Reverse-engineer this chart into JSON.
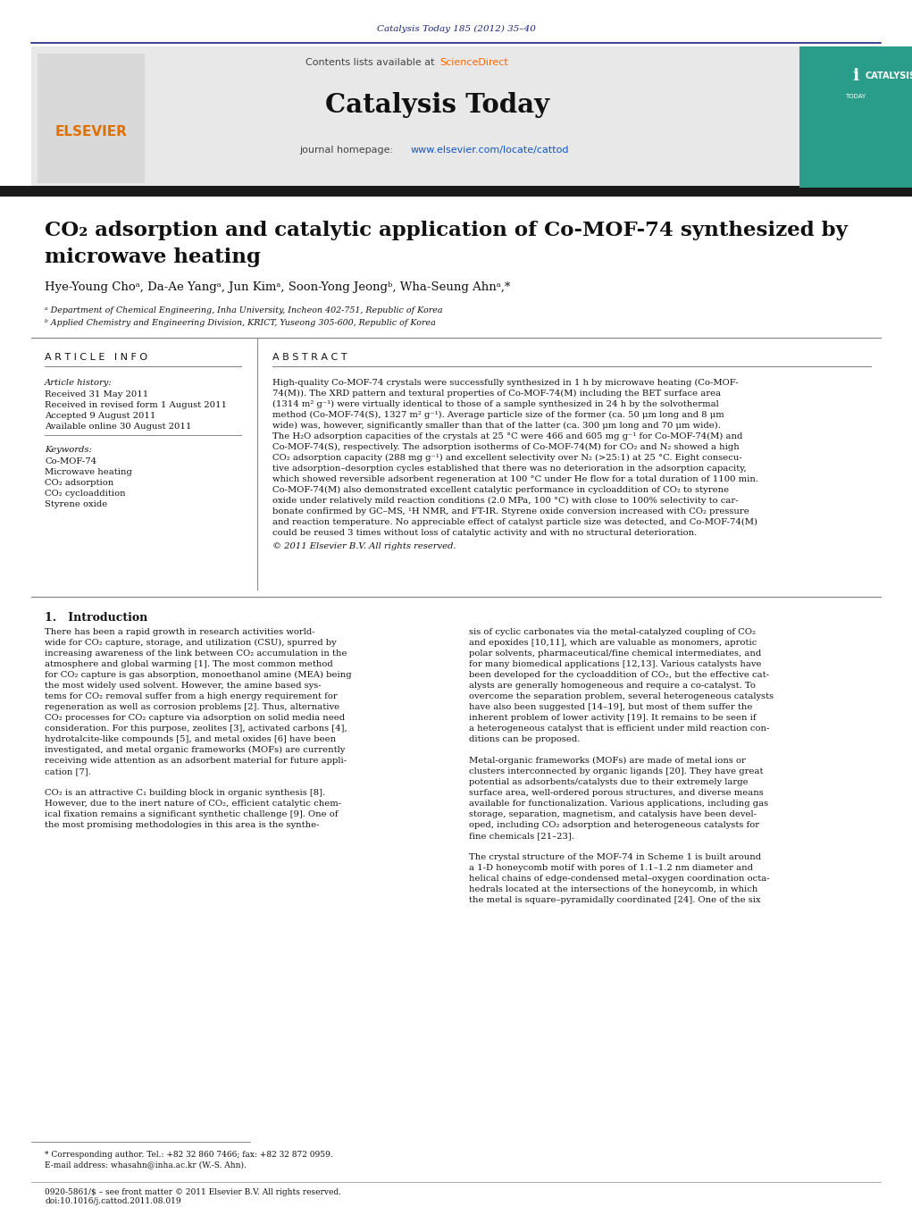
{
  "journal_ref": "Catalysis Today 185 (2012) 35–40",
  "journal_ref_color": "#1a237e",
  "header_bg": "#e8e8e8",
  "header_border_color": "#1a237e",
  "journal_name": "Catalysis Today",
  "contents_text": "Contents lists available at ",
  "sciencedirect_text": "ScienceDirect",
  "sciencedirect_color": "#ff6600",
  "journal_homepage_text": "journal homepage: ",
  "journal_url": "www.elsevier.com/locate/cattod",
  "journal_url_color": "#1155cc",
  "elsevier_color": "#ff6600",
  "dark_bar_color": "#1a1a1a",
  "title_line1": "CO₂ adsorption and catalytic application of Co-MOF-74 synthesized by",
  "title_line2": "microwave heating",
  "title_fontsize": 17,
  "authors": "Hye-Young Choᵃ, Da-Ae Yangᵃ, Jun Kimᵃ, Soon-Yong Jeongᵇ, Wha-Seung Ahnᵃ,*",
  "affil_a": "ᵃ Department of Chemical Engineering, Inha University, Incheon 402-751, Republic of Korea",
  "affil_b": "ᵇ Applied Chemistry and Engineering Division, KRICT, Yuseong 305-600, Republic of Korea",
  "article_info_header": "A R T I C L E   I N F O",
  "abstract_header": "A B S T R A C T",
  "article_history_label": "Article history:",
  "received1": "Received 31 May 2011",
  "received2": "Received in revised form 1 August 2011",
  "accepted": "Accepted 9 August 2011",
  "available": "Available online 30 August 2011",
  "keywords_label": "Keywords:",
  "keyword1": "Co-MOF-74",
  "keyword2": "Microwave heating",
  "keyword3": "CO₂ adsorption",
  "keyword4": "CO₂ cycloaddition",
  "keyword5": "Styrene oxide",
  "abstract_lines": [
    "High-quality Co-MOF-74 crystals were successfully synthesized in 1 h by microwave heating (Co-MOF-",
    "74(M)). The XRD pattern and textural properties of Co-MOF-74(M) including the BET surface area",
    "(1314 m² g⁻¹) were virtually identical to those of a sample synthesized in 24 h by the solvothermal",
    "method (Co-MOF-74(S), 1327 m² g⁻¹). Average particle size of the former (ca. 50 μm long and 8 μm",
    "wide) was, however, significantly smaller than that of the latter (ca. 300 μm long and 70 μm wide).",
    "The H₂O adsorption capacities of the crystals at 25 °C were 466 and 605 mg g⁻¹ for Co-MOF-74(M) and",
    "Co-MOF-74(S), respectively. The adsorption isotherms of Co-MOF-74(M) for CO₂ and N₂ showed a high",
    "CO₂ adsorption capacity (288 mg g⁻¹) and excellent selectivity over N₂ (>25:1) at 25 °C. Eight consecu-",
    "tive adsorption–desorption cycles established that there was no deterioration in the adsorption capacity,",
    "which showed reversible adsorbent regeneration at 100 °C under He flow for a total duration of 1100 min.",
    "Co-MOF-74(M) also demonstrated excellent catalytic performance in cycloaddition of CO₂ to styrene",
    "oxide under relatively mild reaction conditions (2.0 MPa, 100 °C) with close to 100% selectivity to car-",
    "bonate confirmed by GC–MS, ¹H NMR, and FT-IR. Styrene oxide conversion increased with CO₂ pressure",
    "and reaction temperature. No appreciable effect of catalyst particle size was detected, and Co-MOF-74(M)",
    "could be reused 3 times without loss of catalytic activity and with no structural deterioration."
  ],
  "copyright_abstract": "© 2011 Elsevier B.V. All rights reserved.",
  "intro_header": "1.   Introduction",
  "col1_lines": [
    "There has been a rapid growth in research activities world-",
    "wide for CO₂ capture, storage, and utilization (CSU), spurred by",
    "increasing awareness of the link between CO₂ accumulation in the",
    "atmosphere and global warming [1]. The most common method",
    "for CO₂ capture is gas absorption, monoethanol amine (MEA) being",
    "the most widely used solvent. However, the amine based sys-",
    "tems for CO₂ removal suffer from a high energy requirement for",
    "regeneration as well as corrosion problems [2]. Thus, alternative",
    "CO₂ processes for CO₂ capture via adsorption on solid media need",
    "consideration. For this purpose, zeolites [3], activated carbons [4],",
    "hydrotalcite-like compounds [5], and metal oxides [6] have been",
    "investigated, and metal organic frameworks (MOFs) are currently",
    "receiving wide attention as an adsorbent material for future appli-",
    "cation [7].",
    "",
    "CO₂ is an attractive C₁ building block in organic synthesis [8].",
    "However, due to the inert nature of CO₂, efficient catalytic chem-",
    "ical fixation remains a significant synthetic challenge [9]. One of",
    "the most promising methodologies in this area is the synthe-"
  ],
  "col2_lines": [
    "sis of cyclic carbonates via the metal-catalyzed coupling of CO₂",
    "and epoxides [10,11], which are valuable as monomers, aprotic",
    "polar solvents, pharmaceutical/fine chemical intermediates, and",
    "for many biomedical applications [12,13]. Various catalysts have",
    "been developed for the cycloaddition of CO₂, but the effective cat-",
    "alysts are generally homogeneous and require a co-catalyst. To",
    "overcome the separation problem, several heterogeneous catalysts",
    "have also been suggested [14–19], but most of them suffer the",
    "inherent problem of lower activity [19]. It remains to be seen if",
    "a heterogeneous catalyst that is efficient under mild reaction con-",
    "ditions can be proposed.",
    "",
    "Metal-organic frameworks (MOFs) are made of metal ions or",
    "clusters interconnected by organic ligands [20]. They have great",
    "potential as adsorbents/catalysts due to their extremely large",
    "surface area, well-ordered porous structures, and diverse means",
    "available for functionalization. Various applications, including gas",
    "storage, separation, magnetism, and catalysis have been devel-",
    "oped, including CO₂ adsorption and heterogeneous catalysts for",
    "fine chemicals [21–23].",
    "",
    "The crystal structure of the MOF-74 in Scheme 1 is built around",
    "a 1-D honeycomb motif with pores of 1.1–1.2 nm diameter and",
    "helical chains of edge-condensed metal–oxygen coordination octa-",
    "hedrals located at the intersections of the honeycomb, in which",
    "the metal is square–pyramidally coordinated [24]. One of the six"
  ],
  "footer_left": "0920-5861/$ – see front matter © 2011 Elsevier B.V. All rights reserved.",
  "footer_doi": "doi:10.1016/j.cattod.2011.08.019",
  "footnote_corr": "* Corresponding author. Tel.: +82 32 860 7466; fax: +82 32 872 0959.",
  "footnote_email": "E-mail address: whasahn@inha.ac.kr (W.-S. Ahn).",
  "bg_color": "#ffffff",
  "text_color": "#000000",
  "light_gray": "#f0f0f0"
}
